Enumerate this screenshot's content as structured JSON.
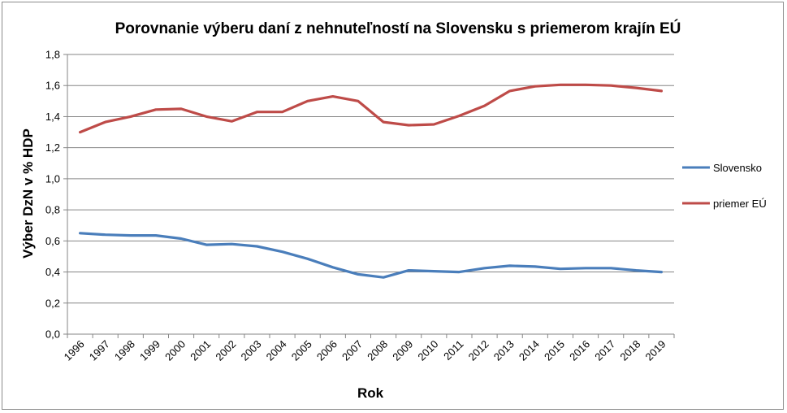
{
  "chart_data": {
    "type": "line",
    "title": "Porovnanie výberu daní z nehnuteľností na Slovensku s priemerom krajín EÚ",
    "xlabel": "Rok",
    "ylabel": "Výber DzN v % HDP",
    "categories": [
      "1996",
      "1997",
      "1998",
      "1999",
      "2000",
      "2001",
      "2002",
      "2003",
      "2004",
      "2005",
      "2006",
      "2007",
      "2008",
      "2009",
      "2010",
      "2011",
      "2012",
      "2013",
      "2014",
      "2015",
      "2016",
      "2017",
      "2018",
      "2019"
    ],
    "y_ticks": [
      "0,0",
      "0,2",
      "0,4",
      "0,6",
      "0,8",
      "1,0",
      "1,2",
      "1,4",
      "1,6",
      "1,8"
    ],
    "ylim": [
      0,
      1.8
    ],
    "grid": "horizontal",
    "legend_position": "right",
    "series": [
      {
        "name": "Slovensko",
        "color": "#4a7ebb",
        "values": [
          0.65,
          0.64,
          0.635,
          0.635,
          0.615,
          0.575,
          0.58,
          0.565,
          0.53,
          0.485,
          0.43,
          0.385,
          0.365,
          0.41,
          0.405,
          0.4,
          0.425,
          0.44,
          0.435,
          0.42,
          0.425,
          0.425,
          0.41,
          0.4
        ]
      },
      {
        "name": "priemer EÚ",
        "color": "#be4b48",
        "values": [
          1.3,
          1.365,
          1.4,
          1.445,
          1.45,
          1.4,
          1.37,
          1.43,
          1.43,
          1.5,
          1.53,
          1.5,
          1.365,
          1.345,
          1.35,
          1.405,
          1.47,
          1.565,
          1.595,
          1.605,
          1.605,
          1.6,
          1.585,
          1.565
        ]
      }
    ]
  }
}
